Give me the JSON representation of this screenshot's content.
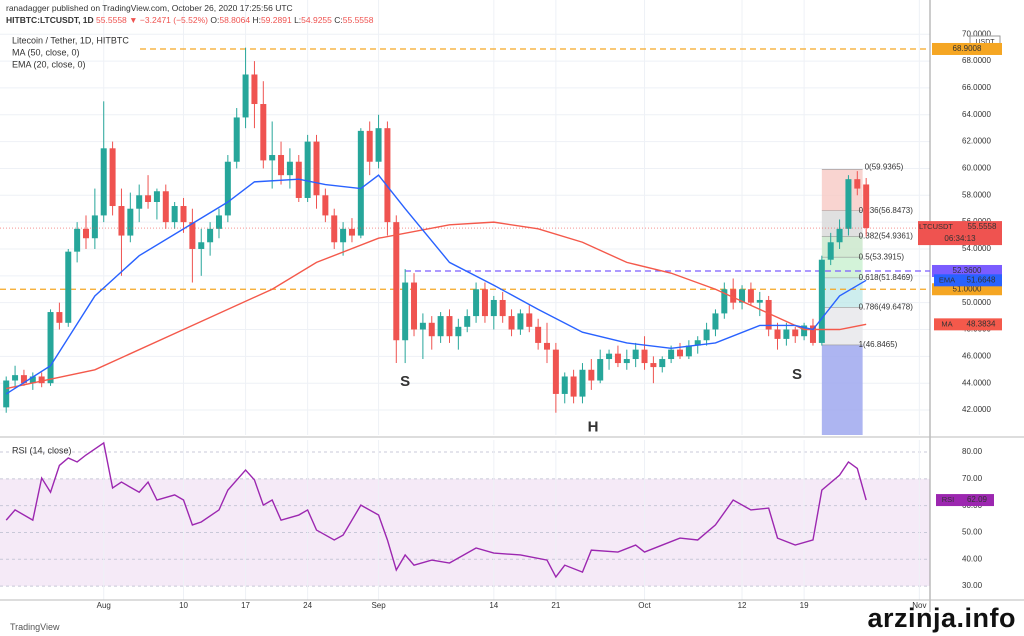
{
  "header": {
    "publisher": "ranadagger published on TradingView.com, October 26, 2020 17:25:56 UTC",
    "symbol": "HITBTC:LTCUSDT, 1D",
    "last": "55.5558",
    "change": "▼ −3.2471 (−5.52%)",
    "ohlc": [
      {
        "label": "O:",
        "value": "58.8064"
      },
      {
        "label": "H:",
        "value": "59.2891"
      },
      {
        "label": "L:",
        "value": "54.9255"
      },
      {
        "label": "C:",
        "value": "55.5558"
      }
    ]
  },
  "brand": "TradingView",
  "watermark": "arzinja.info",
  "chart_data": [
    {
      "type": "candlestick",
      "title": "Litecoin / Tether, 1D, HITBTC",
      "currency": "USDT",
      "up_color": "#26a69a",
      "down_color": "#ef5350",
      "xlim": [
        -0.7,
        104.2
      ],
      "ylim": [
        40.14,
        72.55
      ],
      "xticks": [
        {
          "value": 11,
          "label": "Aug"
        },
        {
          "value": 20,
          "label": "10"
        },
        {
          "value": 27,
          "label": "17"
        },
        {
          "value": 34,
          "label": "24"
        },
        {
          "value": 42,
          "label": "Sep"
        },
        {
          "value": 55,
          "label": "14"
        },
        {
          "value": 62,
          "label": "21"
        },
        {
          "value": 72,
          "label": "Oct"
        },
        {
          "value": 83,
          "label": "12"
        },
        {
          "value": 90,
          "label": "19"
        },
        {
          "value": 103,
          "label": "Nov"
        }
      ],
      "yticks": [
        {
          "value": 42,
          "label": "42.0000"
        },
        {
          "value": 44,
          "label": "44.0000"
        },
        {
          "value": 46,
          "label": "46.0000"
        },
        {
          "value": 48,
          "label": "48.0000"
        },
        {
          "value": 50,
          "label": "50.0000"
        },
        {
          "value": 52,
          "label": "52.0000"
        },
        {
          "value": 54,
          "label": "54.0000"
        },
        {
          "value": 56,
          "label": "56.0000"
        },
        {
          "value": 58,
          "label": "58.0000"
        },
        {
          "value": 60,
          "label": "60.0000"
        },
        {
          "value": 62,
          "label": "62.0000"
        },
        {
          "value": 64,
          "label": "64.0000"
        },
        {
          "value": 66,
          "label": "66.0000"
        },
        {
          "value": 68,
          "label": "68.0000"
        },
        {
          "value": 70,
          "label": "70.0000"
        }
      ],
      "grid": true,
      "candles": [
        [
          42.2,
          44.5,
          41.8,
          44.2
        ],
        [
          44.2,
          45.3,
          43.6,
          44.6
        ],
        [
          44.6,
          45.0,
          43.8,
          44.0
        ],
        [
          44.0,
          44.8,
          43.5,
          44.5
        ],
        [
          44.5,
          44.8,
          43.7,
          44.0
        ],
        [
          44.0,
          49.5,
          43.8,
          49.3
        ],
        [
          49.3,
          50.0,
          48.0,
          48.5
        ],
        [
          48.5,
          54.0,
          48.2,
          53.8
        ],
        [
          53.8,
          56.0,
          53.0,
          55.5
        ],
        [
          55.5,
          56.5,
          54.0,
          54.8
        ],
        [
          54.8,
          58.5,
          54.0,
          56.5
        ],
        [
          56.5,
          65.0,
          56.0,
          61.5
        ],
        [
          61.5,
          62.0,
          56.5,
          57.2
        ],
        [
          57.2,
          58.5,
          52.0,
          55.0
        ],
        [
          55.0,
          58.2,
          54.5,
          57.0
        ],
        [
          57.0,
          58.8,
          56.0,
          58.0
        ],
        [
          58.0,
          59.5,
          57.0,
          57.5
        ],
        [
          57.5,
          58.5,
          56.2,
          58.3
        ],
        [
          58.3,
          58.8,
          55.5,
          56.0
        ],
        [
          56.0,
          57.5,
          55.5,
          57.2
        ],
        [
          57.2,
          57.8,
          55.2,
          56.0
        ],
        [
          56.0,
          57.0,
          51.5,
          54.0
        ],
        [
          54.0,
          55.5,
          52.0,
          54.5
        ],
        [
          54.5,
          56.0,
          53.5,
          55.5
        ],
        [
          55.5,
          57.0,
          54.8,
          56.5
        ],
        [
          56.5,
          61.0,
          56.0,
          60.5
        ],
        [
          60.5,
          64.5,
          60.0,
          63.8
        ],
        [
          63.8,
          69.0,
          63.0,
          67.0
        ],
        [
          67.0,
          68.0,
          63.0,
          64.8
        ],
        [
          64.8,
          66.5,
          60.0,
          60.6
        ],
        [
          60.6,
          63.5,
          58.5,
          61.0
        ],
        [
          61.0,
          62.0,
          58.8,
          59.5
        ],
        [
          59.5,
          61.5,
          58.5,
          60.5
        ],
        [
          60.5,
          61.0,
          57.5,
          57.8
        ],
        [
          57.8,
          62.5,
          57.5,
          62.0
        ],
        [
          62.0,
          62.5,
          57.0,
          58.0
        ],
        [
          58.0,
          58.5,
          56.0,
          56.5
        ],
        [
          56.5,
          57.0,
          54.0,
          54.5
        ],
        [
          54.5,
          56.0,
          53.5,
          55.5
        ],
        [
          55.5,
          56.3,
          54.5,
          55.0
        ],
        [
          55.0,
          63.0,
          54.8,
          62.8
        ],
        [
          62.8,
          63.5,
          59.5,
          60.5
        ],
        [
          60.5,
          64.0,
          60.0,
          63.0
        ],
        [
          63.0,
          63.5,
          55.0,
          56.0
        ],
        [
          56.0,
          56.5,
          45.5,
          47.2
        ],
        [
          47.2,
          52.5,
          45.5,
          51.5
        ],
        [
          51.5,
          52.2,
          47.5,
          48.0
        ],
        [
          48.0,
          49.2,
          45.8,
          48.5
        ],
        [
          48.5,
          49.0,
          46.5,
          47.5
        ],
        [
          47.5,
          49.3,
          47.0,
          49.0
        ],
        [
          49.0,
          49.5,
          47.0,
          47.5
        ],
        [
          47.5,
          48.8,
          46.5,
          48.2
        ],
        [
          48.2,
          49.5,
          47.8,
          49.0
        ],
        [
          49.0,
          51.5,
          48.5,
          51.0
        ],
        [
          51.0,
          51.5,
          48.5,
          49.0
        ],
        [
          49.0,
          50.5,
          48.0,
          50.2
        ],
        [
          50.2,
          50.8,
          48.5,
          49.0
        ],
        [
          49.0,
          49.5,
          47.5,
          48.0
        ],
        [
          48.0,
          49.5,
          47.6,
          49.2
        ],
        [
          49.2,
          49.8,
          47.8,
          48.2
        ],
        [
          48.2,
          48.8,
          46.5,
          47.0
        ],
        [
          47.0,
          48.5,
          45.5,
          46.5
        ],
        [
          46.5,
          47.0,
          41.8,
          43.2
        ],
        [
          43.2,
          44.8,
          42.5,
          44.5
        ],
        [
          44.5,
          45.0,
          42.5,
          43.0
        ],
        [
          43.0,
          45.5,
          42.5,
          45.0
        ],
        [
          45.0,
          45.8,
          43.5,
          44.2
        ],
        [
          44.2,
          46.5,
          44.0,
          45.8
        ],
        [
          45.8,
          46.5,
          45.0,
          46.2
        ],
        [
          46.2,
          46.8,
          45.2,
          45.5
        ],
        [
          45.5,
          46.5,
          45.0,
          45.8
        ],
        [
          45.8,
          47.0,
          45.2,
          46.5
        ],
        [
          46.5,
          47.5,
          45.0,
          45.5
        ],
        [
          45.5,
          46.0,
          44.0,
          45.2
        ],
        [
          45.2,
          46.0,
          44.8,
          45.8
        ],
        [
          45.8,
          46.8,
          45.5,
          46.5
        ],
        [
          46.5,
          47.0,
          45.8,
          46.0
        ],
        [
          46.0,
          47.2,
          45.8,
          46.8
        ],
        [
          46.8,
          47.5,
          46.2,
          47.2
        ],
        [
          47.2,
          48.5,
          46.8,
          48.0
        ],
        [
          48.0,
          49.5,
          47.5,
          49.2
        ],
        [
          49.2,
          51.5,
          48.8,
          51.0
        ],
        [
          51.0,
          51.8,
          49.5,
          50.0
        ],
        [
          50.0,
          51.3,
          49.5,
          51.0
        ],
        [
          51.0,
          51.5,
          49.8,
          50.0
        ],
        [
          50.0,
          50.8,
          49.0,
          50.2
        ],
        [
          50.2,
          50.5,
          47.5,
          48.0
        ],
        [
          48.0,
          48.5,
          46.5,
          47.3
        ],
        [
          47.3,
          48.5,
          46.8,
          48.0
        ],
        [
          48.0,
          48.2,
          47.0,
          47.5
        ],
        [
          47.5,
          48.5,
          47.2,
          48.3
        ],
        [
          48.3,
          48.8,
          46.8,
          47.0
        ],
        [
          47.0,
          53.5,
          46.8,
          53.2
        ],
        [
          53.2,
          55.2,
          52.8,
          54.5
        ],
        [
          54.5,
          56.2,
          54.0,
          55.5
        ],
        [
          55.5,
          59.5,
          55.0,
          59.2
        ],
        [
          59.2,
          59.8,
          58.0,
          58.5
        ],
        [
          58.8064,
          59.2891,
          54.9255,
          55.5558
        ]
      ],
      "series": [
        {
          "name": "MA (50, close, 0)",
          "tag": "MA",
          "color": "#f4594b",
          "x": [
            0,
            10,
            20,
            30,
            35,
            42,
            50,
            55,
            60,
            65,
            70,
            75,
            80,
            85,
            90,
            94,
            97
          ],
          "values": [
            43.6,
            45.0,
            48.0,
            51.0,
            53.0,
            54.8,
            55.8,
            56.0,
            55.5,
            54.5,
            53.0,
            52.2,
            51.0,
            49.5,
            48.0,
            48.0,
            48.3834
          ]
        },
        {
          "name": "EMA (20, close, 0)",
          "tag": "EMA",
          "color": "#2962ff",
          "x": [
            0,
            5,
            10,
            15,
            20,
            25,
            28,
            33,
            36,
            40,
            42,
            45,
            50,
            55,
            60,
            65,
            70,
            75,
            80,
            85,
            89,
            91,
            94,
            97
          ],
          "values": [
            43.2,
            45.3,
            50.5,
            53.5,
            55.5,
            57.5,
            59.0,
            59.2,
            58.8,
            58.5,
            59.5,
            57.0,
            53.0,
            51.3,
            49.5,
            47.8,
            47.0,
            46.6,
            47.0,
            48.3,
            48.3,
            48.0,
            50.5,
            51.6648
          ]
        }
      ],
      "hlines": [
        {
          "value": 68.9008,
          "label": "68.9008",
          "color": "#f5a623"
        },
        {
          "value": 52.36,
          "label": "52.3600",
          "color": "#7b5cff"
        },
        {
          "value": 51,
          "label": "51.0000",
          "color": "#f5a623"
        }
      ],
      "last_price": {
        "name": "LTCUSDT",
        "value": 55.5558,
        "countdown": "06:34:13"
      },
      "fib": [
        {
          "value": 59.9365,
          "label": "0(59.9365)"
        },
        {
          "value": 56.8473,
          "label": "0.236(56.8473)"
        },
        {
          "value": 54.9361,
          "label": "0.382(54.9361)"
        },
        {
          "value": 53.3915,
          "label": "0.5(53.3915)"
        },
        {
          "value": 51.8469,
          "label": "0.618(51.8469)"
        },
        {
          "value": 49.6478,
          "label": "0.786(49.6478)"
        },
        {
          "value": 46.8465,
          "label": "1(46.8465)"
        }
      ],
      "annotations": [
        "S",
        "H",
        "S"
      ]
    },
    {
      "type": "line",
      "title": "RSI (14, close)",
      "xlim": [
        -0.7,
        104.2
      ],
      "ylim": [
        24.8,
        84.5
      ],
      "yticks": [
        {
          "value": 30,
          "label": "30.00"
        },
        {
          "value": 40,
          "label": "40.00"
        },
        {
          "value": 50,
          "label": "50.00"
        },
        {
          "value": 60,
          "label": "60.00"
        },
        {
          "value": 70,
          "label": "70.00"
        },
        {
          "value": 80,
          "label": "80.00"
        }
      ],
      "band": [
        30,
        70
      ],
      "series": [
        {
          "name": "RSI",
          "color": "#9c27b0",
          "x": [
            0,
            1,
            3,
            4,
            5,
            6,
            7,
            8,
            9,
            11,
            12,
            13,
            15,
            16,
            17,
            19,
            20,
            21,
            22,
            24,
            25,
            27,
            28,
            29,
            30,
            31,
            33,
            34,
            35,
            37,
            38,
            40,
            42,
            43,
            44,
            45,
            46,
            48,
            50,
            53,
            55,
            58,
            61,
            62,
            63,
            65,
            66,
            69,
            71,
            72,
            74,
            76,
            78,
            80,
            82,
            84,
            86,
            87,
            89,
            91,
            92,
            94,
            95,
            96,
            97
          ],
          "values": [
            54.6,
            58.4,
            54.6,
            70.3,
            65,
            75,
            77.8,
            76.3,
            78.9,
            83.4,
            66.6,
            68.8,
            65,
            68.8,
            62.1,
            64,
            62.1,
            52.8,
            53.9,
            58.4,
            65.8,
            73.3,
            69.6,
            60.2,
            62.1,
            54.6,
            56.5,
            58.4,
            50.9,
            47.2,
            49,
            60.2,
            56.5,
            47.2,
            36,
            41.6,
            37.8,
            39.7,
            38.6,
            44.2,
            42.3,
            41.6,
            39.7,
            33.4,
            37.8,
            35.2,
            43.4,
            42.7,
            45.3,
            42.7,
            45.3,
            47.9,
            47.2,
            52.8,
            62.1,
            58.4,
            59.1,
            47.9,
            45.3,
            47.2,
            65.8,
            71.4,
            76.3,
            73.9,
            62.09
          ]
        }
      ]
    }
  ]
}
